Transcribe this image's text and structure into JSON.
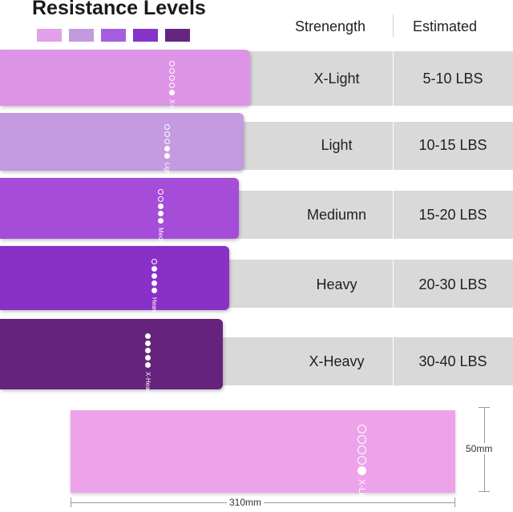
{
  "title": "Resistance Levels",
  "swatch_colors": [
    "#e2a0e8",
    "#c39adf",
    "#a65ee0",
    "#8533c9",
    "#63257f"
  ],
  "columns": {
    "strength": "Strenength",
    "estimated": "Estimated"
  },
  "rows": [
    {
      "strength": "X-Light",
      "estimated": "5-10 LBS",
      "band_label": "X-Light",
      "color": "#de94e6",
      "dots_filled": 1
    },
    {
      "strength": "Light",
      "estimated": "10-15 LBS",
      "band_label": "Light",
      "color": "#c49ae0",
      "dots_filled": 2
    },
    {
      "strength": "Mediumn",
      "estimated": "15-20 LBS",
      "band_label": "Meduim",
      "color": "#a54cd9",
      "dots_filled": 3
    },
    {
      "strength": "Heavy",
      "estimated": "20-30 LBS",
      "band_label": "Heavy",
      "color": "#8930c7",
      "dots_filled": 4
    },
    {
      "strength": "X-Heavy",
      "estimated": "30-40 LBS",
      "band_label": "X-Heavy",
      "color": "#65237e",
      "dots_filled": 5
    }
  ],
  "sample": {
    "label": "X-Light",
    "color": "#eda3ea",
    "dots_filled": 1,
    "height_text": "50mm",
    "width_text": "310mm"
  }
}
